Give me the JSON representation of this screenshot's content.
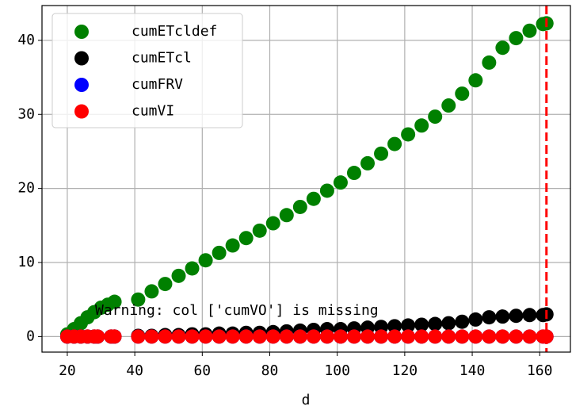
{
  "chart_data": {
    "type": "scatter",
    "x_label": "d",
    "annotation": "Warning: col ['cumVO'] is missing",
    "xlim": [
      12.5,
      169.1
    ],
    "ylim": [
      -2.1,
      44.7
    ],
    "xticks": [
      20,
      40,
      60,
      80,
      100,
      120,
      140,
      160
    ],
    "yticks": [
      0,
      10,
      20,
      30,
      40
    ],
    "grid": true,
    "legend": "upper left",
    "vline": {
      "x": 162,
      "color": "#ff0000"
    },
    "series": [
      {
        "name": "cumETcldef",
        "color": "#008000",
        "x": [
          20,
          22,
          24,
          26,
          28,
          30,
          32,
          34,
          41,
          45,
          49,
          53,
          57,
          61,
          65,
          69,
          73,
          77,
          81,
          85,
          89,
          93,
          97,
          101,
          105,
          109,
          113,
          117,
          121,
          125,
          129,
          133,
          137,
          141,
          145,
          149,
          153,
          157,
          161,
          162
        ],
        "values": [
          0.3,
          1.0,
          1.8,
          2.6,
          3.3,
          3.9,
          4.3,
          4.7,
          5.0,
          6.1,
          7.1,
          8.2,
          9.2,
          10.3,
          11.3,
          12.3,
          13.3,
          14.3,
          15.3,
          16.4,
          17.5,
          18.6,
          19.7,
          20.8,
          22.1,
          23.4,
          24.7,
          26.0,
          27.3,
          28.5,
          29.7,
          31.2,
          32.8,
          34.6,
          37.0,
          39.0,
          40.3,
          41.3,
          42.2,
          42.3
        ]
      },
      {
        "name": "cumETcl",
        "color": "#000000",
        "x": [
          20,
          22,
          24,
          26,
          28,
          29,
          33,
          34,
          41,
          45,
          49,
          53,
          57,
          61,
          65,
          69,
          73,
          77,
          81,
          85,
          89,
          93,
          97,
          101,
          105,
          109,
          113,
          117,
          121,
          125,
          129,
          133,
          137,
          141,
          145,
          149,
          153,
          157,
          161,
          162
        ],
        "values": [
          0,
          0,
          0,
          0,
          0,
          0,
          0,
          0,
          0.1,
          0.1,
          0.2,
          0.2,
          0.3,
          0.3,
          0.4,
          0.4,
          0.5,
          0.5,
          0.6,
          0.7,
          0.8,
          0.9,
          1.0,
          1.0,
          1.1,
          1.2,
          1.3,
          1.4,
          1.5,
          1.6,
          1.7,
          1.8,
          2.0,
          2.3,
          2.6,
          2.7,
          2.8,
          2.9,
          2.9,
          3.0
        ]
      },
      {
        "name": "cumFRV",
        "color": "#0000ff",
        "x": [
          20,
          22,
          24,
          26,
          28,
          29,
          33,
          34,
          41,
          45,
          49,
          53,
          57,
          61,
          65,
          69,
          73,
          77,
          81,
          85,
          89,
          93,
          97,
          101,
          105,
          109,
          113,
          117,
          121,
          125,
          129,
          133,
          137,
          141,
          145,
          149,
          153,
          157,
          161,
          162
        ],
        "values": [
          0,
          0,
          0,
          0,
          0,
          0,
          0,
          0,
          0,
          0,
          0,
          0,
          0,
          0,
          0,
          0,
          0,
          0,
          0,
          0,
          0,
          0,
          0,
          0,
          0,
          0,
          0,
          0,
          0,
          0,
          0,
          0,
          0,
          0,
          0,
          0,
          0,
          0,
          0,
          0
        ]
      },
      {
        "name": "cumVI",
        "color": "#ff0000",
        "x": [
          20,
          22,
          24,
          26,
          28,
          29,
          33,
          34,
          41,
          45,
          49,
          53,
          57,
          61,
          65,
          69,
          73,
          77,
          81,
          85,
          89,
          93,
          97,
          101,
          105,
          109,
          113,
          117,
          121,
          125,
          129,
          133,
          137,
          141,
          145,
          149,
          153,
          157,
          161,
          162
        ],
        "values": [
          0,
          0,
          0,
          0,
          0,
          0,
          0,
          0,
          0,
          0,
          0,
          0,
          0,
          0,
          0,
          0,
          0,
          0,
          0,
          0,
          0,
          0,
          0,
          0,
          0,
          0,
          0,
          0,
          0,
          0,
          0,
          0,
          0,
          0,
          0,
          0,
          0,
          0,
          0,
          0
        ]
      }
    ]
  }
}
